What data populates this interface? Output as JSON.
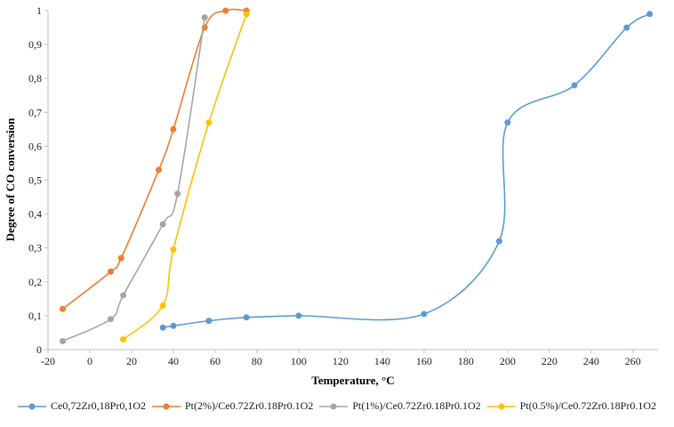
{
  "chart_data": {
    "type": "line",
    "title": "",
    "xlabel": "Temperature, °C",
    "ylabel": "Degree of CO conversion",
    "xlim": [
      -20,
      272
    ],
    "ylim": [
      0,
      1
    ],
    "x_ticks": [
      -20,
      0,
      20,
      40,
      60,
      80,
      100,
      120,
      140,
      160,
      180,
      200,
      220,
      240,
      260
    ],
    "y_tick_labels": [
      "0",
      "0,1",
      "0,2",
      "0,3",
      "0,4",
      "0,5",
      "0,6",
      "0,7",
      "0,8",
      "0,9",
      "1"
    ],
    "grid": false,
    "legend_position": "bottom",
    "marker": "circle",
    "line_style": "smooth",
    "axis_color": "#BFBFBF",
    "series": [
      {
        "name": "Ce0,72Zr0,18Pr0,1O2",
        "color": "#5B9BD5",
        "points": [
          [
            35,
            0.065
          ],
          [
            40,
            0.07
          ],
          [
            57,
            0.085
          ],
          [
            75,
            0.095
          ],
          [
            100,
            0.1
          ],
          [
            160,
            0.105
          ],
          [
            196,
            0.32
          ],
          [
            200,
            0.67
          ],
          [
            232,
            0.78
          ],
          [
            257,
            0.95
          ],
          [
            268,
            0.99
          ]
        ]
      },
      {
        "name": "Pt(2%)/Ce0.72Zr0.18Pr0.1O2",
        "color": "#ED7D31",
        "points": [
          [
            -13,
            0.12
          ],
          [
            10,
            0.23
          ],
          [
            15,
            0.27
          ],
          [
            33,
            0.53
          ],
          [
            40,
            0.65
          ],
          [
            55,
            0.95
          ],
          [
            65,
            1.0
          ],
          [
            75,
            1.0
          ]
        ]
      },
      {
        "name": "Pt(1%)/Ce0.72Zr0.18Pr0.1O2",
        "color": "#A5A5A5",
        "points": [
          [
            -13,
            0.025
          ],
          [
            10,
            0.09
          ],
          [
            16,
            0.16
          ],
          [
            35,
            0.37
          ],
          [
            42,
            0.46
          ],
          [
            55,
            0.98
          ]
        ]
      },
      {
        "name": "Pt(0.5%)/Ce0.72Zr0.18Pr0.1O2",
        "color": "#FFC000",
        "points": [
          [
            16,
            0.03
          ],
          [
            35,
            0.13
          ],
          [
            40,
            0.295
          ],
          [
            57,
            0.67
          ],
          [
            75,
            0.99
          ]
        ]
      }
    ]
  }
}
